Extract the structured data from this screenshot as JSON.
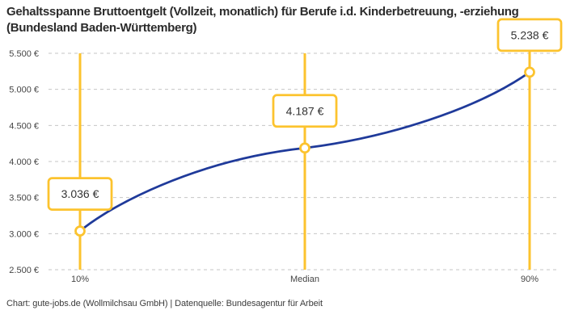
{
  "header": {
    "title": "Gehaltsspanne Bruttoentgelt (Vollzeit, monatlich) für Berufe i.d. Kinderbetreuung, -erziehung (Bundesland Baden-Württemberg)"
  },
  "footer": {
    "credit": "Chart: gute-jobs.de (Wollmilchsau GmbH) | Datenquelle: Bundesagentur für Arbeit"
  },
  "chart_data": {
    "type": "line",
    "categories": [
      "10%",
      "Median",
      "90%"
    ],
    "values": [
      3036,
      4187,
      5238
    ],
    "point_labels": [
      "3.036 €",
      "4.187 €",
      "5.238 €"
    ],
    "title": "Gehaltsspanne Bruttoentgelt (Vollzeit, monatlich) für Berufe i.d. Kinderbetreuung, -erziehung (Bundesland Baden-Württemberg)",
    "xlabel": "",
    "ylabel": "",
    "ylim": [
      2500,
      5500
    ],
    "ytick_interval": 500,
    "ytick_labels": [
      "2.500 €",
      "3.000 €",
      "3.500 €",
      "4.000 €",
      "4.500 €",
      "5.000 €",
      "5.500 €"
    ],
    "grid": "horizontal-dashed",
    "legend": "none",
    "marker_style": "open-circle-with-vertical-rule-and-value-box",
    "colors": {
      "line": "#1f3a9a",
      "accent_yellow": "#fcc32e",
      "grid": "#c6c6c6",
      "axis_text": "#454545",
      "label_text": "#333333",
      "title_text": "#2b2b2b",
      "background": "#ffffff"
    }
  }
}
